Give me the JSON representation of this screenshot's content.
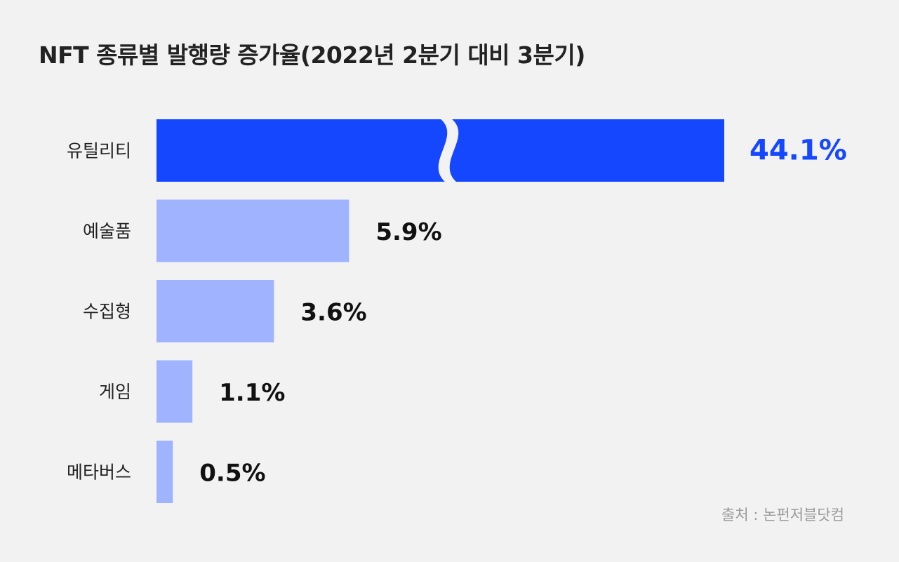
{
  "title": "NFT 종류별 발행량 증가율(2022년 2분기 대비 3분기)",
  "source": "출처 : 논펀저블닷컴",
  "colors": {
    "highlight": "#1447ff",
    "bar": "#a0b3ff",
    "label": "#111111",
    "highlight_label": "#1447ff",
    "background": "#f2f2f2"
  },
  "chart_data": {
    "type": "bar",
    "orientation": "horizontal",
    "title": "NFT 종류별 발행량 증가율(2022년 2분기 대비 3분기)",
    "categories": [
      "유틸리티",
      "예술품",
      "수집형",
      "게임",
      "메타버스"
    ],
    "values": [
      44.1,
      5.9,
      3.6,
      1.1,
      0.5
    ],
    "value_labels": [
      "44.1%",
      "5.9%",
      "3.6%",
      "1.1%",
      "0.5%"
    ],
    "axis_break": true,
    "highlight_index": 0,
    "legend": "none",
    "grid": false
  }
}
